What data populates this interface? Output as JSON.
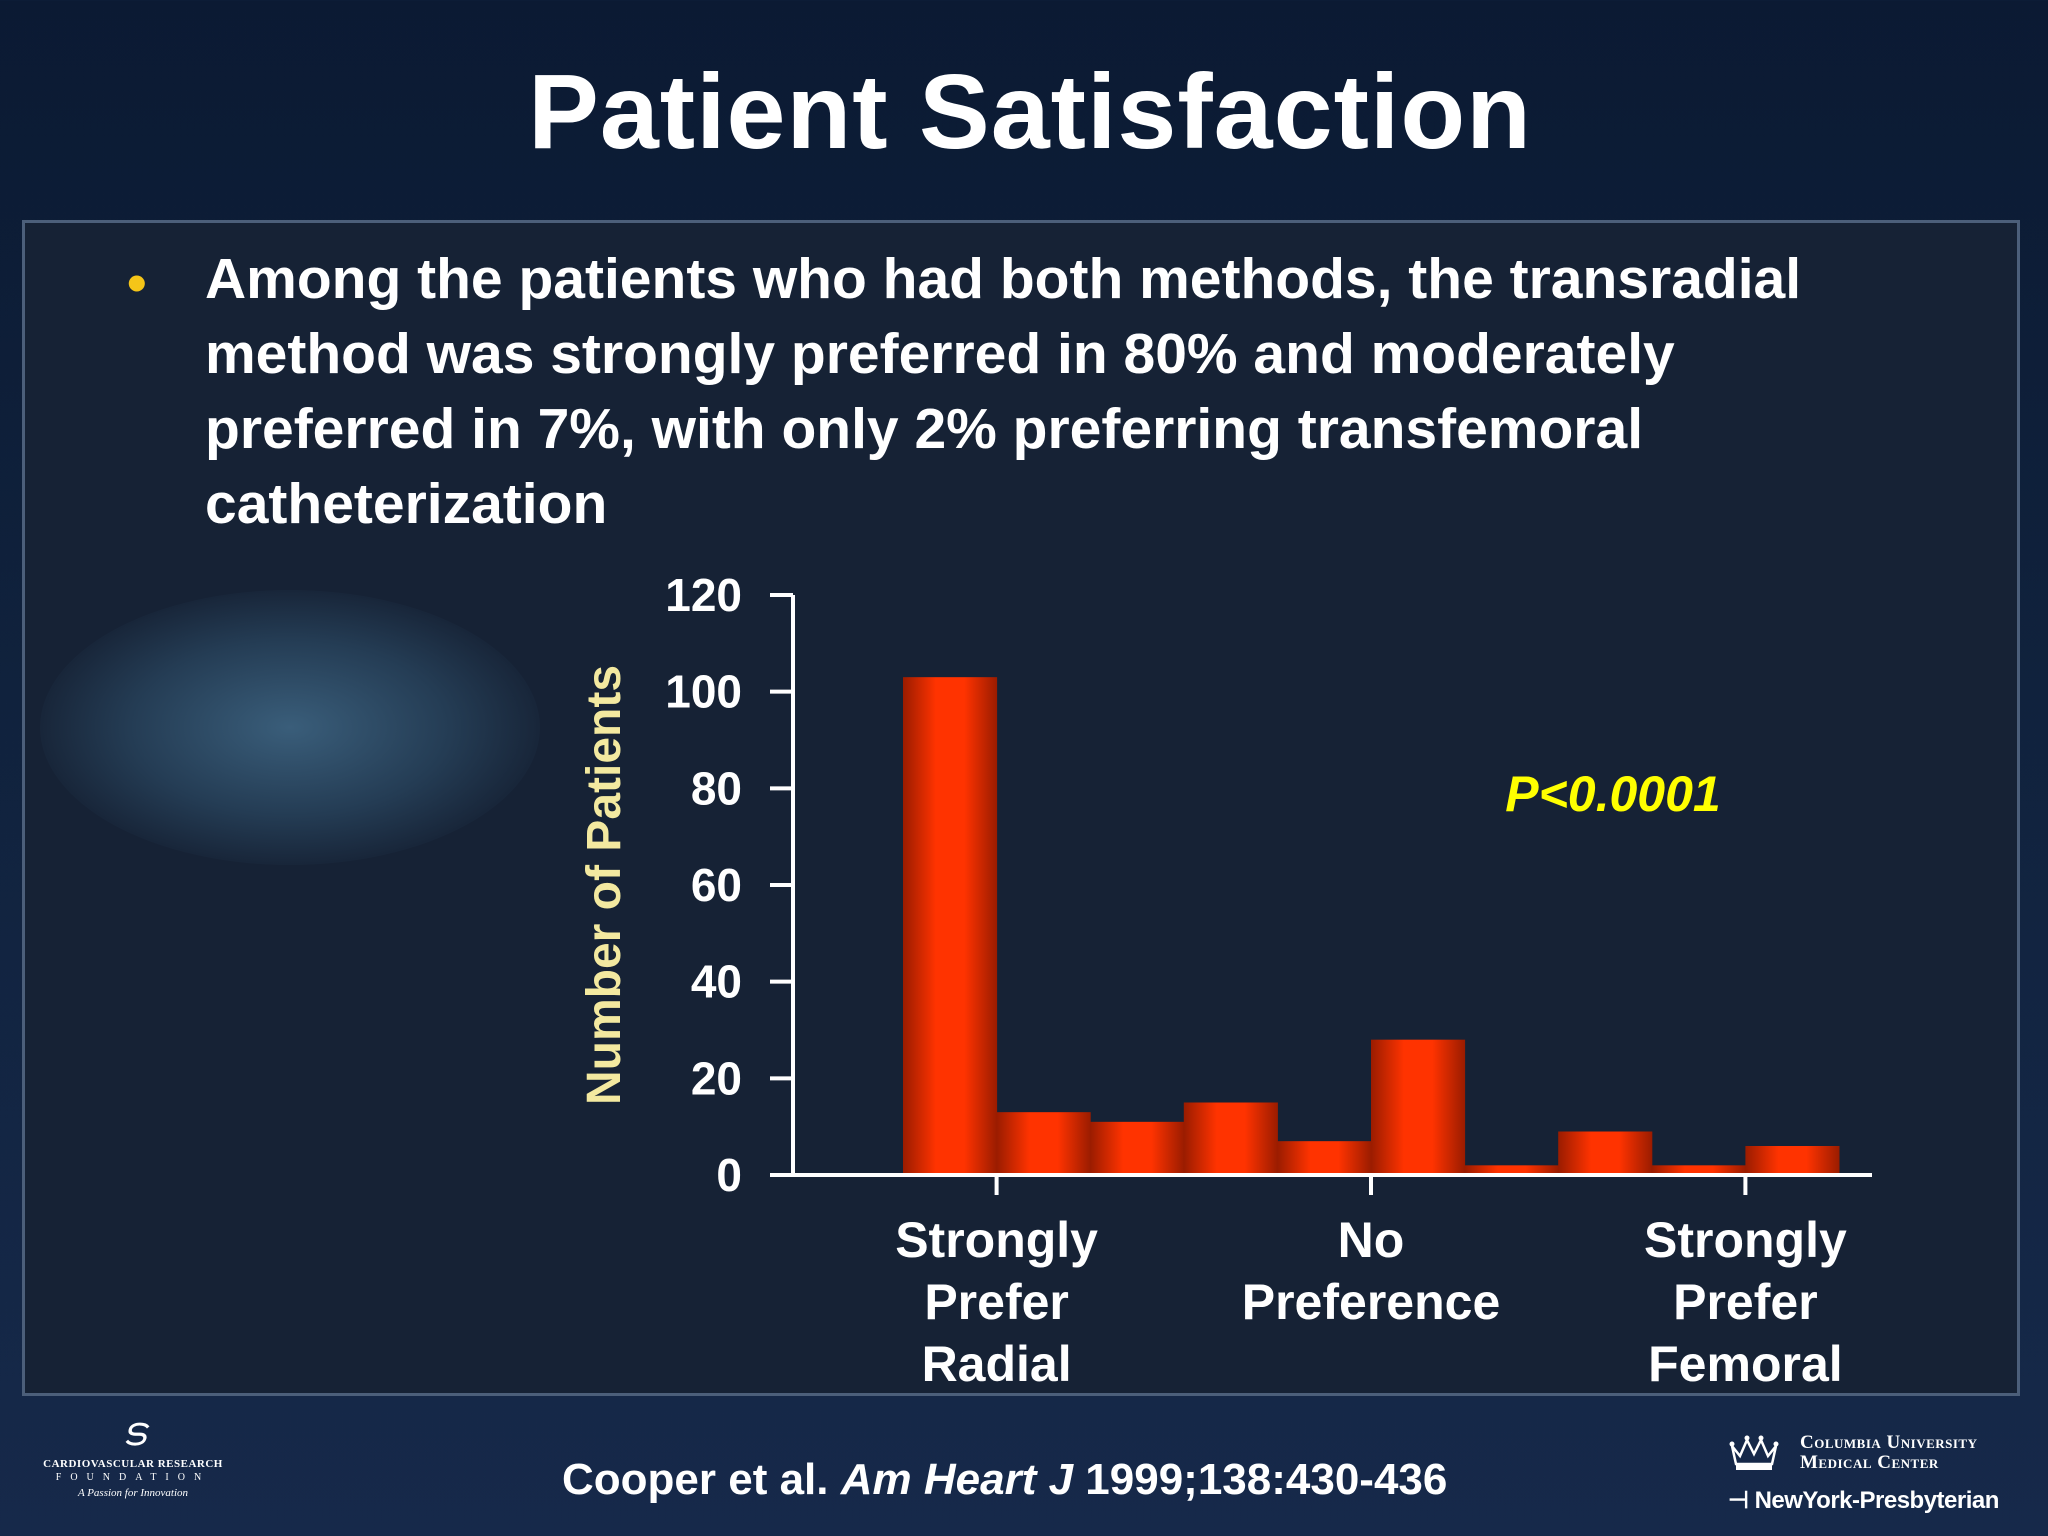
{
  "slide": {
    "title": "Patient Satisfaction",
    "bullet": "Among the patients who had both methods, the transradial method was strongly preferred in 80% and moderately preferred in 7%, with only 2% preferring transfemoral catheterization",
    "citation_authors": "Cooper et al.",
    "citation_journal": "Am Heart J",
    "citation_ref": "1999;138:430-436"
  },
  "logos": {
    "crf_line1": "CARDIOVASCULAR RESEARCH",
    "crf_line2": "FOUNDATION",
    "crf_line3": "A Passion for Innovation",
    "cumc_line1": "Columbia University",
    "cumc_line2": "Medical Center",
    "nyp": "NewYork-Presbyterian"
  },
  "colors": {
    "bar": "#ff3300",
    "bar_shadow": "#9a1c00",
    "ylabel": "#f3e9a0",
    "annotation": "#ffff00",
    "bullet": "#f5c518"
  },
  "chart_data": {
    "type": "bar",
    "ylabel": "Number of Patients",
    "ylim": [
      0,
      120
    ],
    "yticks": [
      0,
      20,
      40,
      60,
      80,
      100,
      120
    ],
    "values": [
      103,
      13,
      11,
      15,
      7,
      28,
      2,
      9,
      2,
      6
    ],
    "x_labels": [
      {
        "text": "Strongly\nPrefer\nRadial",
        "position": 1
      },
      {
        "text": "No\nPreference",
        "position": 5
      },
      {
        "text": "Strongly\nPrefer\nFemoral",
        "position": 9
      }
    ],
    "annotation": "P<0.0001",
    "grid": false
  }
}
